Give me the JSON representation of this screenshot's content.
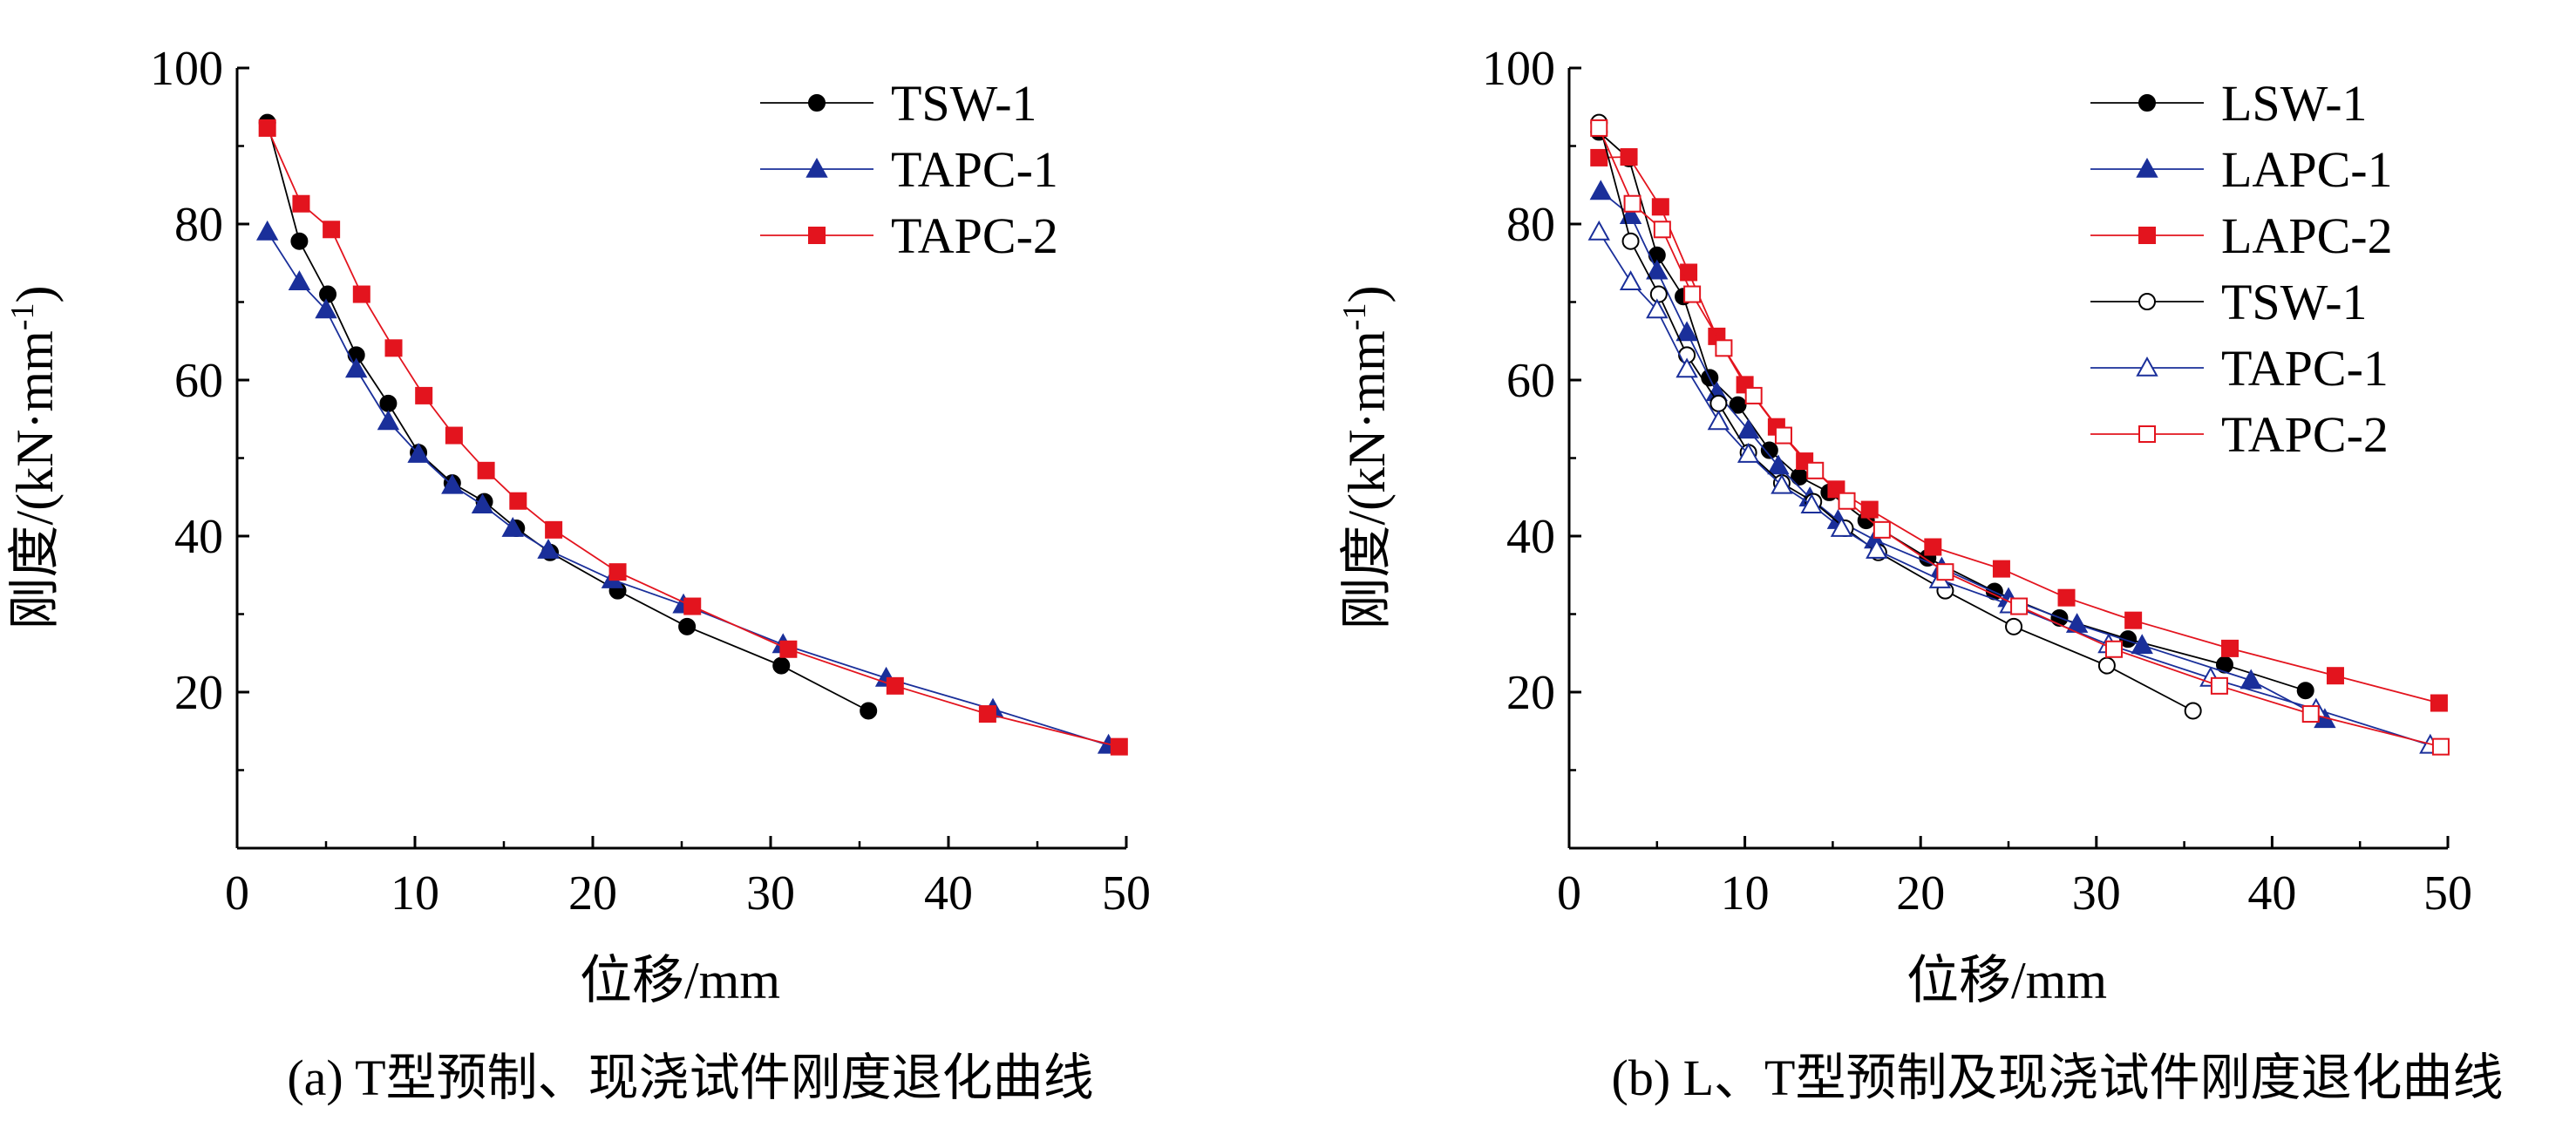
{
  "chart_data": [
    {
      "type": "line",
      "caption": "(a) T型预制、现浇试件刚度退化曲线",
      "xlabel": "位移/mm",
      "ylabel": "刚度/(kN·mm",
      "ylabel_sup": "-1",
      "ylabel_close": ")",
      "xlim": [
        0,
        50
      ],
      "ylim": [
        0,
        100
      ],
      "xticks": [
        0,
        10,
        20,
        30,
        40,
        50
      ],
      "yticks": [
        20,
        40,
        60,
        80,
        100
      ],
      "grid": false,
      "legend_position": "top-right",
      "series": [
        {
          "name": "TSW-1",
          "color": "#000000",
          "marker": "circle",
          "filled": true,
          "points": [
            [
              1.7,
              93.0
            ],
            [
              3.5,
              77.8
            ],
            [
              5.1,
              71.0
            ],
            [
              6.7,
              63.2
            ],
            [
              8.5,
              57.0
            ],
            [
              10.2,
              50.7
            ],
            [
              12.1,
              46.8
            ],
            [
              13.9,
              44.4
            ],
            [
              15.7,
              41.0
            ],
            [
              17.6,
              37.9
            ],
            [
              21.4,
              33.0
            ],
            [
              25.3,
              28.4
            ],
            [
              30.6,
              23.4
            ],
            [
              35.5,
              17.6
            ]
          ]
        },
        {
          "name": "TAPC-1",
          "color": "#1a2f9a",
          "marker": "triangle",
          "filled": true,
          "points": [
            [
              1.7,
              79.0
            ],
            [
              3.5,
              72.6
            ],
            [
              5.0,
              69.0
            ],
            [
              6.7,
              61.4
            ],
            [
              8.5,
              54.7
            ],
            [
              10.2,
              50.5
            ],
            [
              12.1,
              46.5
            ],
            [
              13.8,
              44.0
            ],
            [
              15.5,
              41.0
            ],
            [
              17.5,
              38.2
            ],
            [
              21.1,
              34.4
            ],
            [
              25.1,
              31.2
            ],
            [
              30.7,
              26.1
            ],
            [
              36.5,
              21.8
            ],
            [
              42.5,
              17.8
            ],
            [
              49.0,
              13.2
            ]
          ]
        },
        {
          "name": "TAPC-2",
          "color": "#e3141e",
          "marker": "square",
          "filled": true,
          "points": [
            [
              1.7,
              92.3
            ],
            [
              3.6,
              82.6
            ],
            [
              5.3,
              79.3
            ],
            [
              7.0,
              71.0
            ],
            [
              8.8,
              64.1
            ],
            [
              10.5,
              58.0
            ],
            [
              12.2,
              52.9
            ],
            [
              14.0,
              48.4
            ],
            [
              15.8,
              44.5
            ],
            [
              17.8,
              40.8
            ],
            [
              21.4,
              35.4
            ],
            [
              25.6,
              31.0
            ],
            [
              31.0,
              25.5
            ],
            [
              37.0,
              20.8
            ],
            [
              42.2,
              17.2
            ],
            [
              49.6,
              13.0
            ]
          ]
        }
      ]
    },
    {
      "type": "line",
      "caption": "(b) L、T型预制及现浇试件刚度退化曲线",
      "xlabel": "位移/mm",
      "ylabel": "刚度/(kN·mm",
      "ylabel_sup": "-1",
      "ylabel_close": ")",
      "xlim": [
        0,
        50
      ],
      "ylim": [
        0,
        100
      ],
      "xticks": [
        0,
        10,
        20,
        30,
        40,
        50
      ],
      "yticks": [
        20,
        40,
        60,
        80,
        100
      ],
      "grid": false,
      "legend_position": "top-right",
      "series": [
        {
          "name": "LSW-1",
          "color": "#000000",
          "marker": "circle",
          "filled": true,
          "points": [
            [
              1.7,
              91.8
            ],
            [
              3.4,
              88.4
            ],
            [
              5.0,
              76.0
            ],
            [
              6.5,
              70.7
            ],
            [
              8.0,
              60.3
            ],
            [
              9.6,
              56.8
            ],
            [
              11.4,
              51.0
            ],
            [
              13.1,
              47.6
            ],
            [
              14.8,
              45.6
            ],
            [
              16.9,
              42.0
            ],
            [
              20.4,
              37.2
            ],
            [
              24.2,
              32.9
            ],
            [
              27.9,
              29.5
            ],
            [
              31.8,
              26.8
            ],
            [
              37.3,
              23.5
            ],
            [
              41.9,
              20.2
            ]
          ]
        },
        {
          "name": "LAPC-1",
          "color": "#1a2f9a",
          "marker": "triangle",
          "filled": true,
          "points": [
            [
              1.8,
              84.2
            ],
            [
              3.5,
              81.1
            ],
            [
              5.0,
              74.0
            ],
            [
              6.7,
              66.1
            ],
            [
              8.4,
              58.4
            ],
            [
              10.2,
              53.6
            ],
            [
              11.9,
              49.0
            ],
            [
              13.7,
              44.9
            ],
            [
              15.3,
              42.0
            ],
            [
              17.4,
              39.5
            ],
            [
              21.2,
              35.9
            ],
            [
              25.0,
              32.0
            ],
            [
              28.9,
              28.7
            ],
            [
              32.6,
              26.0
            ],
            [
              38.8,
              21.5
            ],
            [
              43.0,
              16.5
            ]
          ]
        },
        {
          "name": "LAPC-2",
          "color": "#e3141e",
          "marker": "square",
          "filled": true,
          "points": [
            [
              1.7,
              88.5
            ],
            [
              3.4,
              88.6
            ],
            [
              5.2,
              82.2
            ],
            [
              6.8,
              73.8
            ],
            [
              8.4,
              65.6
            ],
            [
              10.0,
              59.4
            ],
            [
              11.8,
              54.0
            ],
            [
              13.4,
              49.6
            ],
            [
              15.2,
              46.0
            ],
            [
              17.1,
              43.4
            ],
            [
              20.7,
              38.6
            ],
            [
              24.6,
              35.8
            ],
            [
              28.3,
              32.1
            ],
            [
              32.1,
              29.2
            ],
            [
              37.6,
              25.6
            ],
            [
              43.6,
              22.1
            ],
            [
              49.5,
              18.6
            ]
          ]
        },
        {
          "name": "TSW-1",
          "color": "#000000",
          "marker": "circle",
          "filled": false,
          "points": [
            [
              1.7,
              93.0
            ],
            [
              3.5,
              77.8
            ],
            [
              5.1,
              71.0
            ],
            [
              6.7,
              63.2
            ],
            [
              8.5,
              57.0
            ],
            [
              10.2,
              50.7
            ],
            [
              12.1,
              46.8
            ],
            [
              13.9,
              44.4
            ],
            [
              15.7,
              41.0
            ],
            [
              17.6,
              37.9
            ],
            [
              21.4,
              33.0
            ],
            [
              25.3,
              28.4
            ],
            [
              30.6,
              23.4
            ],
            [
              35.5,
              17.6
            ]
          ]
        },
        {
          "name": "TAPC-1",
          "color": "#1a2f9a",
          "marker": "triangle",
          "filled": false,
          "points": [
            [
              1.7,
              79.0
            ],
            [
              3.5,
              72.6
            ],
            [
              5.0,
              69.0
            ],
            [
              6.7,
              61.4
            ],
            [
              8.5,
              54.7
            ],
            [
              10.2,
              50.5
            ],
            [
              12.1,
              46.5
            ],
            [
              13.8,
              44.0
            ],
            [
              15.5,
              41.0
            ],
            [
              17.5,
              38.2
            ],
            [
              21.1,
              34.4
            ],
            [
              25.1,
              31.2
            ],
            [
              30.7,
              26.1
            ],
            [
              36.5,
              21.8
            ],
            [
              42.5,
              17.8
            ],
            [
              49.0,
              13.2
            ]
          ]
        },
        {
          "name": "TAPC-2",
          "color": "#e3141e",
          "marker": "square",
          "filled": false,
          "points": [
            [
              1.7,
              92.3
            ],
            [
              3.6,
              82.6
            ],
            [
              5.3,
              79.3
            ],
            [
              7.0,
              71.0
            ],
            [
              8.8,
              64.1
            ],
            [
              10.5,
              58.0
            ],
            [
              12.2,
              52.9
            ],
            [
              14.0,
              48.4
            ],
            [
              15.8,
              44.5
            ],
            [
              17.8,
              40.8
            ],
            [
              21.4,
              35.4
            ],
            [
              25.6,
              31.0
            ],
            [
              31.0,
              25.5
            ],
            [
              37.0,
              20.8
            ],
            [
              42.2,
              17.2
            ],
            [
              49.6,
              13.0
            ]
          ]
        }
      ]
    }
  ]
}
